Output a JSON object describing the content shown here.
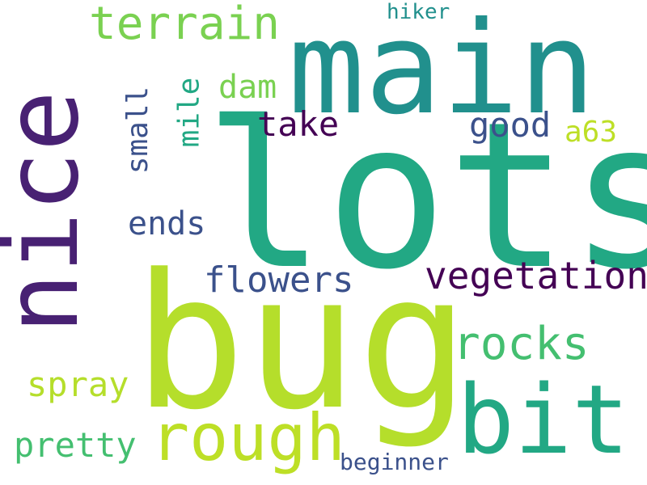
{
  "colors": {
    "background": "#ffffff",
    "purple": "#482173",
    "dark_purple": "#440154",
    "indigo": "#3b518b",
    "teal": "#21908d",
    "green_teal": "#22a884",
    "green": "#44bf70",
    "light_green": "#7ad151",
    "lime": "#b5de2b",
    "yellow_green": "#bddf26"
  },
  "words": {
    "lots": "lots",
    "bug": "bug",
    "main": "main",
    "nice": "nice",
    "bit": "bit",
    "rough": "rough",
    "terrain": "terrain",
    "vegetation": "vegetation",
    "rocks": "rocks",
    "flowers": "flowers",
    "pretty": "pretty",
    "spray": "spray",
    "good": "good",
    "take": "take",
    "ends": "ends",
    "a63": "a63",
    "dam": "dam",
    "small": "small",
    "mile": "mile",
    "hiker": "hiker",
    "beginner": "beginner"
  }
}
